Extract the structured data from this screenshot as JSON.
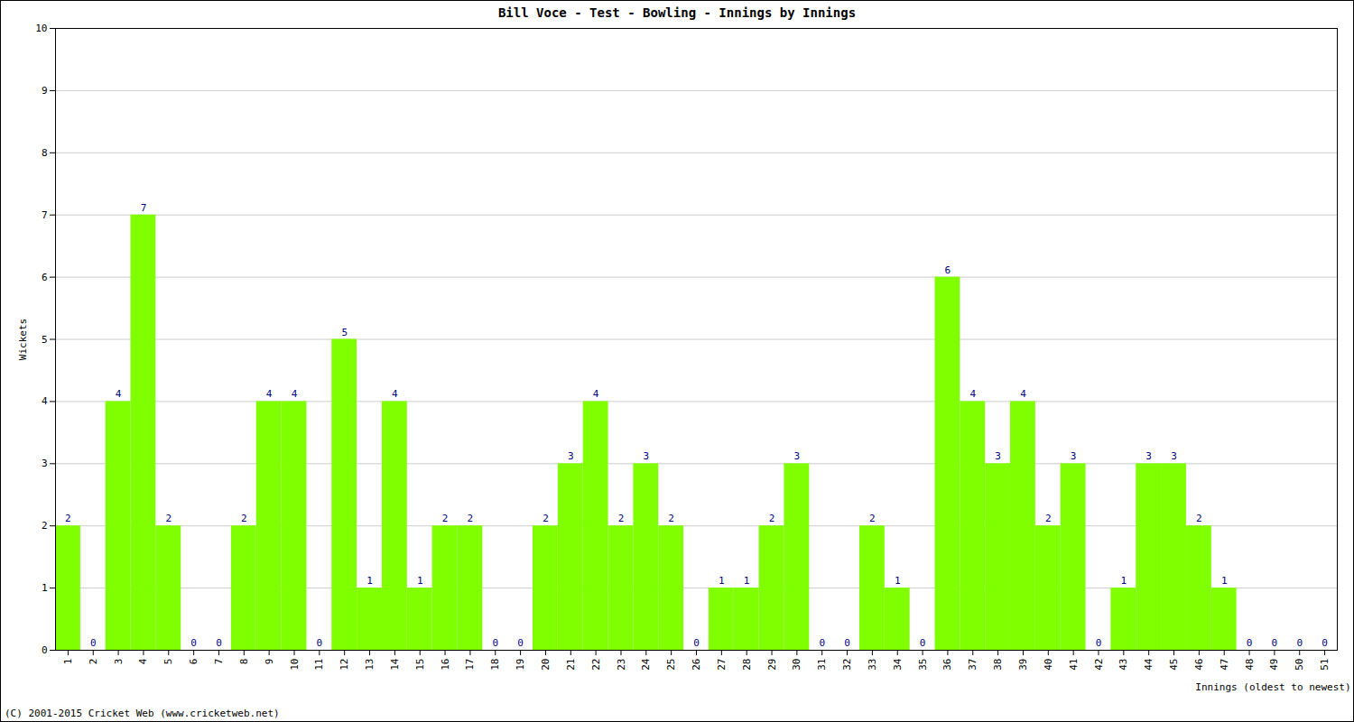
{
  "chart_data": {
    "type": "bar",
    "title": "Bill Voce - Test - Bowling - Innings by Innings",
    "x_label": "Innings (oldest to newest)",
    "y_label": "Wickets",
    "caption": "(C) 2001-2015 Cricket Web (www.cricketweb.net)",
    "categories": [
      "1",
      "2",
      "3",
      "4",
      "5",
      "6",
      "7",
      "8",
      "9",
      "10",
      "11",
      "12",
      "13",
      "14",
      "15",
      "16",
      "17",
      "18",
      "19",
      "20",
      "21",
      "22",
      "23",
      "24",
      "25",
      "26",
      "27",
      "28",
      "29",
      "30",
      "31",
      "32",
      "33",
      "34",
      "35",
      "36",
      "37",
      "38",
      "39",
      "40",
      "41",
      "42",
      "43",
      "44",
      "45",
      "46",
      "47",
      "48",
      "49",
      "50",
      "51"
    ],
    "values": [
      2,
      0,
      4,
      7,
      2,
      0,
      0,
      2,
      4,
      4,
      0,
      5,
      1,
      4,
      1,
      2,
      2,
      0,
      0,
      2,
      3,
      4,
      2,
      3,
      2,
      0,
      1,
      1,
      2,
      3,
      0,
      0,
      2,
      1,
      0,
      6,
      4,
      3,
      4,
      2,
      3,
      0,
      1,
      3,
      3,
      2,
      1,
      0,
      0,
      0,
      0
    ],
    "color": "#80ff00",
    "ylim": [
      0,
      10
    ],
    "yticks": [
      0,
      1,
      2,
      3,
      4,
      5,
      6,
      7,
      8,
      9,
      10
    ],
    "grid": true,
    "data_labels": true
  }
}
